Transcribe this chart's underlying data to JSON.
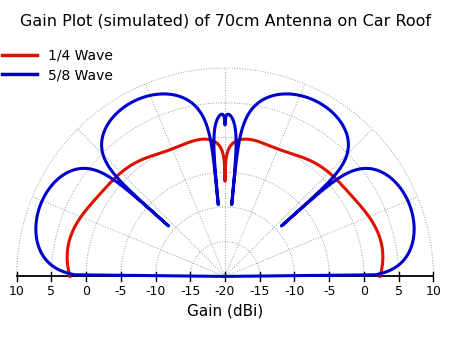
{
  "title": "Gain Plot (simulated) of 70cm Antenna on Car Roof",
  "xlabel": "Gain (dBi)",
  "legend_labels": [
    "1/4 Wave",
    "5/8 Wave"
  ],
  "legend_colors": [
    "#dd1100",
    "#0000cc"
  ],
  "background_color": "#ffffff",
  "grid_color": "#999999",
  "axis_min_dbi": -20,
  "axis_max_dbi": 10,
  "radial_circles_dbi": [
    -15,
    -10,
    -5,
    0,
    5,
    10
  ],
  "num_radial_lines": 9,
  "title_fontsize": 11.5,
  "label_fontsize": 11,
  "tick_fontsize": 9,
  "legend_fontsize": 10
}
